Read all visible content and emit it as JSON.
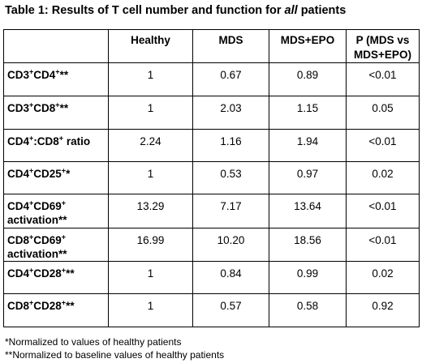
{
  "title": {
    "prefix": "Table 1: Results of T cell number and function for ",
    "emph": "all",
    "suffix": " patients"
  },
  "columns": [
    "",
    "Healthy",
    "MDS",
    "MDS+EPO",
    "P (MDS vs MDS+EPO)"
  ],
  "rows": [
    {
      "label": [
        [
          "CD3",
          ""
        ],
        [
          "+",
          "sup"
        ],
        [
          "CD4",
          ""
        ],
        [
          "+",
          "sup"
        ],
        [
          "**",
          ""
        ]
      ],
      "values": [
        "1",
        "0.67",
        "0.89",
        "<0.01"
      ]
    },
    {
      "label": [
        [
          "CD3",
          ""
        ],
        [
          "+",
          "sup"
        ],
        [
          "CD8",
          ""
        ],
        [
          "+",
          "sup"
        ],
        [
          "**",
          ""
        ]
      ],
      "values": [
        "1",
        "2.03",
        "1.15",
        "0.05"
      ]
    },
    {
      "label": [
        [
          "CD4",
          ""
        ],
        [
          "+",
          "sup"
        ],
        [
          ":CD8",
          ""
        ],
        [
          "+",
          "sup"
        ],
        [
          " ratio",
          ""
        ]
      ],
      "values": [
        "2.24",
        "1.16",
        "1.94",
        "<0.01"
      ]
    },
    {
      "label": [
        [
          "CD4",
          ""
        ],
        [
          "+",
          "sup"
        ],
        [
          "CD25",
          ""
        ],
        [
          "+",
          "sup"
        ],
        [
          "*",
          ""
        ]
      ],
      "values": [
        "1",
        "0.53",
        "0.97",
        "0.02"
      ]
    },
    {
      "label": [
        [
          "CD4",
          ""
        ],
        [
          "+",
          "sup"
        ],
        [
          "CD69",
          ""
        ],
        [
          "+",
          "sup"
        ],
        [
          " activation**",
          ""
        ]
      ],
      "values": [
        "13.29",
        "7.17",
        "13.64",
        "<0.01"
      ]
    },
    {
      "label": [
        [
          "CD8",
          ""
        ],
        [
          "+",
          "sup"
        ],
        [
          "CD69",
          ""
        ],
        [
          "+",
          "sup"
        ],
        [
          " activation**",
          ""
        ]
      ],
      "values": [
        "16.99",
        "10.20",
        "18.56",
        "<0.01"
      ]
    },
    {
      "label": [
        [
          "CD4",
          ""
        ],
        [
          "+",
          "sup"
        ],
        [
          "CD28",
          ""
        ],
        [
          "+",
          "sup"
        ],
        [
          "**",
          ""
        ]
      ],
      "values": [
        "1",
        "0.84",
        "0.99",
        "0.02"
      ]
    },
    {
      "label": [
        [
          "CD8",
          ""
        ],
        [
          "+",
          "sup"
        ],
        [
          "CD28",
          ""
        ],
        [
          "+",
          "sup"
        ],
        [
          "**",
          ""
        ]
      ],
      "values": [
        "1",
        "0.57",
        "0.58",
        "0.92"
      ]
    }
  ],
  "notes": [
    "*Normalized to values of healthy patients",
    "**Normalized to baseline values of healthy patients"
  ]
}
